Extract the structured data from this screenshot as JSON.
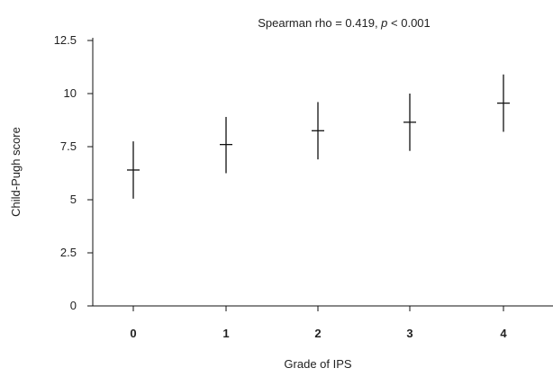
{
  "chart_data": {
    "type": "scatter",
    "title_prefix": "Spearman rho = 0.419, ",
    "title_p": "p",
    "title_suffix": " < 0.001",
    "xlabel": "Grade of IPS",
    "ylabel": "Child-Pugh score",
    "categories": [
      "0",
      "1",
      "2",
      "3",
      "4"
    ],
    "ylim": [
      0,
      12.5
    ],
    "yticks": [
      "0",
      "2.5",
      "5",
      "7.5",
      "10",
      "12.5"
    ],
    "grid": false,
    "series": [
      {
        "mean": [
          6.4,
          7.6,
          8.25,
          8.65,
          9.55
        ],
        "lower": [
          5.05,
          6.25,
          6.9,
          7.3,
          8.2
        ],
        "upper": [
          7.75,
          8.9,
          9.6,
          10.0,
          10.9
        ]
      }
    ],
    "colors": {
      "marks": "#111111",
      "text": "#222222"
    }
  }
}
